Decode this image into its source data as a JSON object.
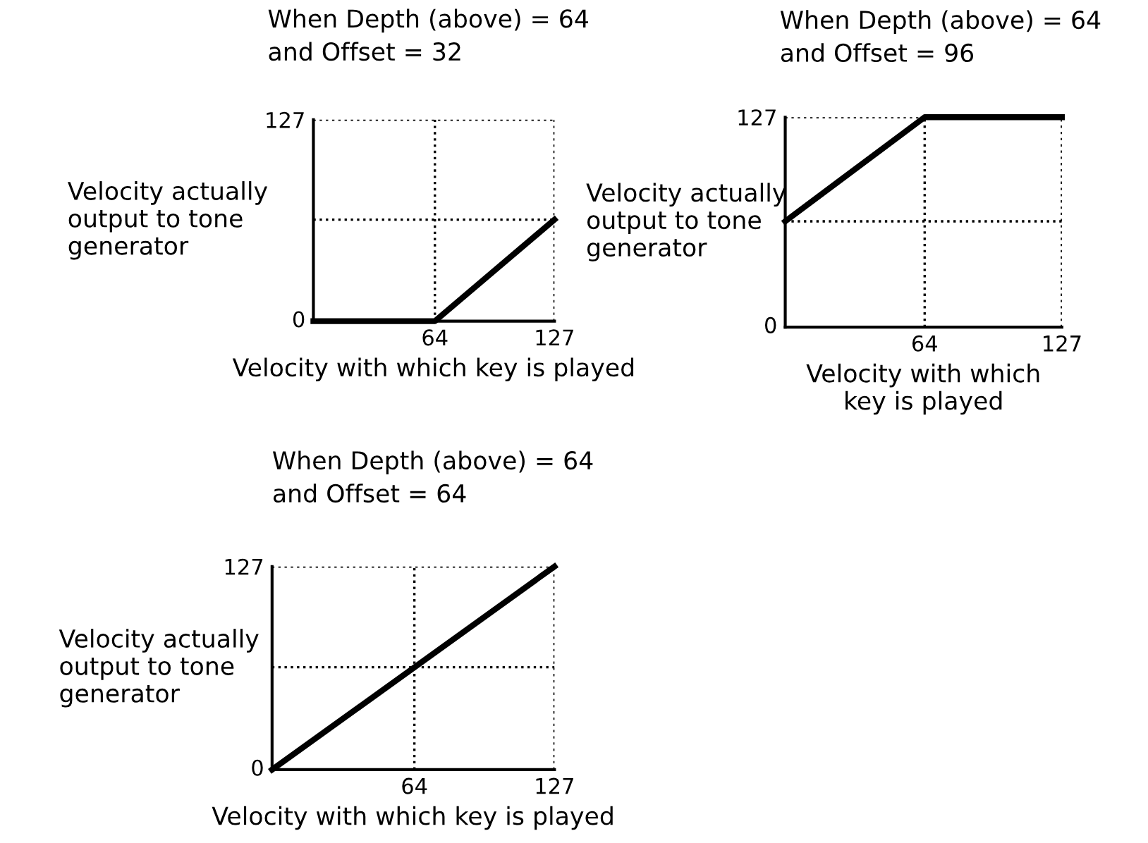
{
  "chart_data": [
    {
      "type": "line",
      "title": "When Depth (above) = 64\nand Offset = 32",
      "xlabel": "Velocity with which key is played",
      "ylabel": "Velocity actually\noutput to tone\ngenerator",
      "x": [
        0,
        64,
        127
      ],
      "series": [
        {
          "color": "#000000",
          "values": [
            0,
            0,
            64
          ]
        }
      ],
      "xlim": [
        0,
        127
      ],
      "ylim": [
        0,
        127
      ],
      "xticks": [
        64,
        127
      ],
      "yticks": [
        0,
        127
      ],
      "ref_lines": [
        {
          "axis": "y",
          "value": 64,
          "line_style": "dotted"
        }
      ],
      "grid": true,
      "marker": "none",
      "line_style": "solid"
    },
    {
      "type": "line",
      "title": "When Depth (above) = 64\nand Offset = 96",
      "xlabel": "Velocity with which\nkey is played",
      "ylabel": "Velocity actually\noutput to tone\ngenerator",
      "x": [
        0,
        64,
        127
      ],
      "series": [
        {
          "color": "#000000",
          "values": [
            64,
            127,
            127
          ]
        }
      ],
      "xlim": [
        0,
        127
      ],
      "ylim": [
        0,
        127
      ],
      "xticks": [
        64,
        127
      ],
      "yticks": [
        0,
        127
      ],
      "ref_lines": [
        {
          "axis": "y",
          "value": 64,
          "line_style": "dotted"
        }
      ],
      "grid": true,
      "marker": "none",
      "line_style": "solid"
    },
    {
      "type": "line",
      "title": "When Depth (above) = 64\nand Offset = 64",
      "xlabel": "Velocity with which key is played",
      "ylabel": "Velocity actually\noutput to tone\ngenerator",
      "x": [
        0,
        127
      ],
      "series": [
        {
          "color": "#000000",
          "values": [
            0,
            127
          ]
        }
      ],
      "xlim": [
        0,
        127
      ],
      "ylim": [
        0,
        127
      ],
      "xticks": [
        64,
        127
      ],
      "yticks": [
        0,
        127
      ],
      "ref_lines": [
        {
          "axis": "y",
          "value": 64,
          "line_style": "dotted"
        }
      ],
      "grid": true,
      "marker": "none",
      "line_style": "solid"
    }
  ]
}
